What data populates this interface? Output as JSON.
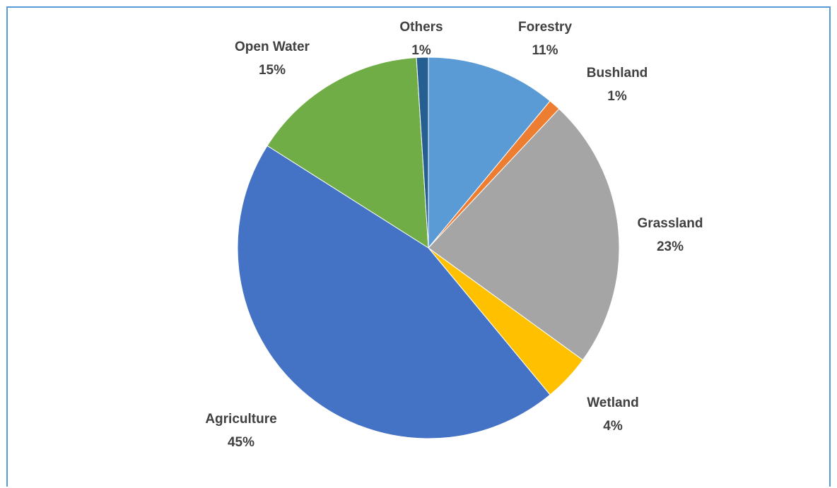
{
  "chart_data": {
    "type": "pie",
    "title": "",
    "start_angle_deg": 0,
    "direction": "clockwise",
    "slices": [
      {
        "label": "Forestry",
        "value": 11,
        "value_label": "11%",
        "color": "#5b9bd5"
      },
      {
        "label": "Bushland",
        "value": 1,
        "value_label": "1%",
        "color": "#ed7d31"
      },
      {
        "label": "Grassland",
        "value": 23,
        "value_label": "23%",
        "color": "#a5a5a5"
      },
      {
        "label": "Wetland",
        "value": 4,
        "value_label": "4%",
        "color": "#ffc000"
      },
      {
        "label": "Agriculture",
        "value": 45,
        "value_label": "45%",
        "color": "#4472c4"
      },
      {
        "label": "Open Water",
        "value": 15,
        "value_label": "15%",
        "color": "#70ad47"
      },
      {
        "label": "Others",
        "value": 1,
        "value_label": "1%",
        "color": "#255e91"
      }
    ],
    "legend": "none",
    "data_labels": "category and percentage, outside end"
  }
}
